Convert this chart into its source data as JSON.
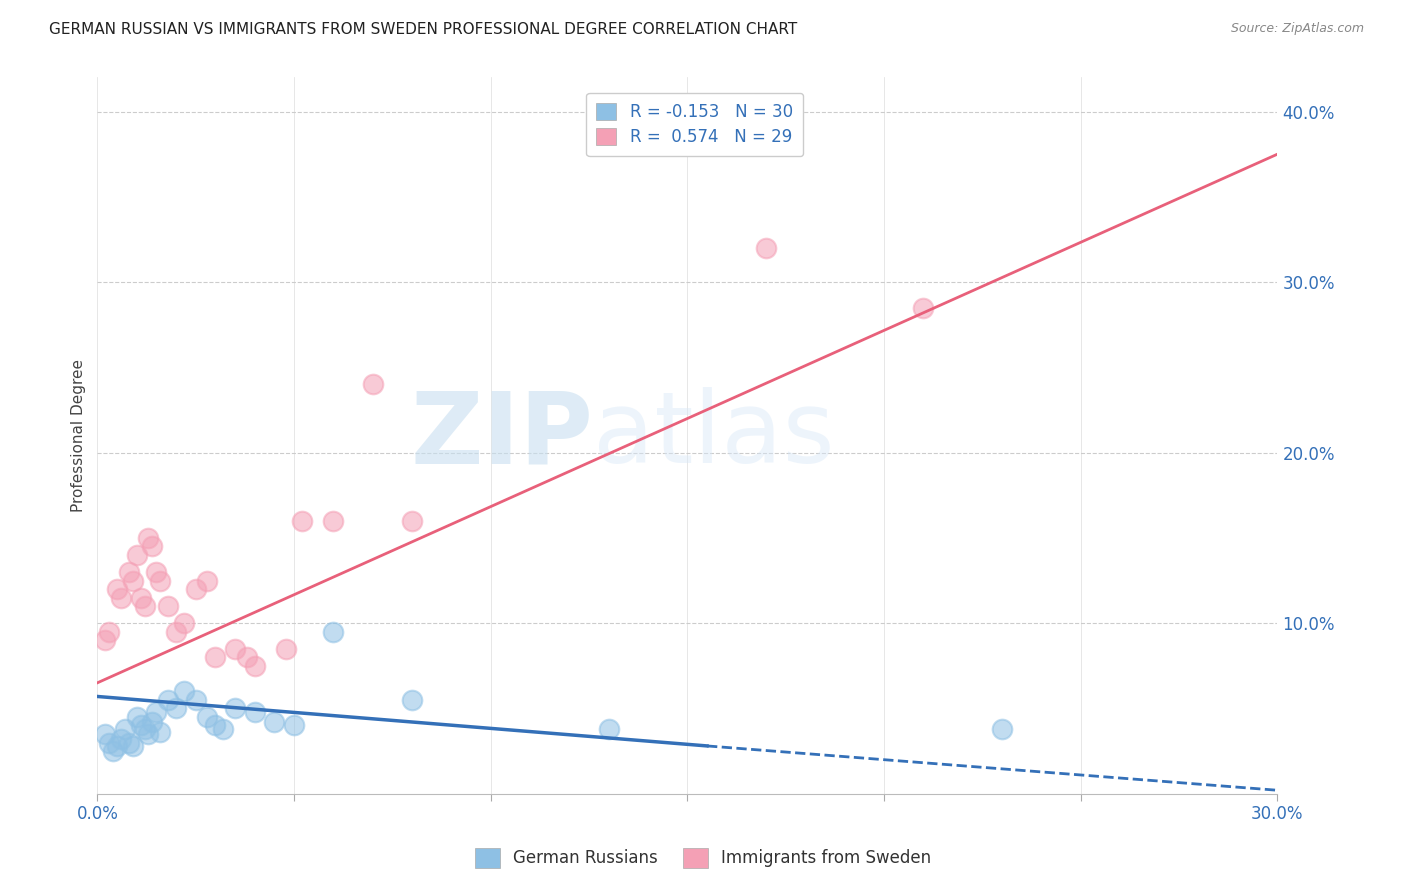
{
  "title": "GERMAN RUSSIAN VS IMMIGRANTS FROM SWEDEN PROFESSIONAL DEGREE CORRELATION CHART",
  "source": "Source: ZipAtlas.com",
  "ylabel": "Professional Degree",
  "xlim": [
    0.0,
    0.3
  ],
  "ylim": [
    0.0,
    0.42
  ],
  "xtick_positions": [
    0.0,
    0.05,
    0.1,
    0.15,
    0.2,
    0.25,
    0.3
  ],
  "xticklabels": [
    "0.0%",
    "",
    "",
    "",
    "",
    "",
    "30.0%"
  ],
  "ytick_positions": [
    0.1,
    0.2,
    0.3,
    0.4
  ],
  "ytick_labels": [
    "10.0%",
    "20.0%",
    "30.0%",
    "40.0%"
  ],
  "legend_blue_label": "R = -0.153   N = 30",
  "legend_pink_label": "R =  0.574   N = 29",
  "legend_bottom_blue": "German Russians",
  "legend_bottom_pink": "Immigrants from Sweden",
  "blue_color": "#8ec0e4",
  "pink_color": "#f4a0b5",
  "blue_line_color": "#3470b8",
  "pink_line_color": "#e8607a",
  "watermark_zip": "ZIP",
  "watermark_atlas": "atlas",
  "grid_color": "#cccccc",
  "background_color": "#ffffff",
  "title_fontsize": 11,
  "blue_scatter_x": [
    0.002,
    0.003,
    0.004,
    0.005,
    0.006,
    0.007,
    0.008,
    0.009,
    0.01,
    0.011,
    0.012,
    0.013,
    0.014,
    0.015,
    0.016,
    0.018,
    0.02,
    0.022,
    0.025,
    0.028,
    0.03,
    0.032,
    0.035,
    0.04,
    0.045,
    0.05,
    0.06,
    0.08,
    0.13,
    0.23
  ],
  "blue_scatter_y": [
    0.035,
    0.03,
    0.025,
    0.028,
    0.032,
    0.038,
    0.03,
    0.028,
    0.045,
    0.04,
    0.038,
    0.035,
    0.042,
    0.048,
    0.036,
    0.055,
    0.05,
    0.06,
    0.055,
    0.045,
    0.04,
    0.038,
    0.05,
    0.048,
    0.042,
    0.04,
    0.095,
    0.055,
    0.038,
    0.038
  ],
  "pink_scatter_x": [
    0.002,
    0.003,
    0.005,
    0.006,
    0.008,
    0.009,
    0.01,
    0.011,
    0.012,
    0.013,
    0.014,
    0.015,
    0.016,
    0.018,
    0.02,
    0.022,
    0.025,
    0.028,
    0.03,
    0.035,
    0.038,
    0.04,
    0.048,
    0.052,
    0.06,
    0.07,
    0.08,
    0.17,
    0.21
  ],
  "pink_scatter_y": [
    0.09,
    0.095,
    0.12,
    0.115,
    0.13,
    0.125,
    0.14,
    0.115,
    0.11,
    0.15,
    0.145,
    0.13,
    0.125,
    0.11,
    0.095,
    0.1,
    0.12,
    0.125,
    0.08,
    0.085,
    0.08,
    0.075,
    0.085,
    0.16,
    0.16,
    0.24,
    0.16,
    0.32,
    0.285
  ],
  "pink_line_x0": 0.0,
  "pink_line_y0": 0.065,
  "pink_line_x1": 0.3,
  "pink_line_y1": 0.375,
  "blue_line_solid_x0": 0.0,
  "blue_line_solid_y0": 0.057,
  "blue_line_solid_x1": 0.155,
  "blue_line_solid_y1": 0.028,
  "blue_line_dash_x0": 0.155,
  "blue_line_dash_y0": 0.028,
  "blue_line_dash_x1": 0.3,
  "blue_line_dash_y1": 0.002
}
